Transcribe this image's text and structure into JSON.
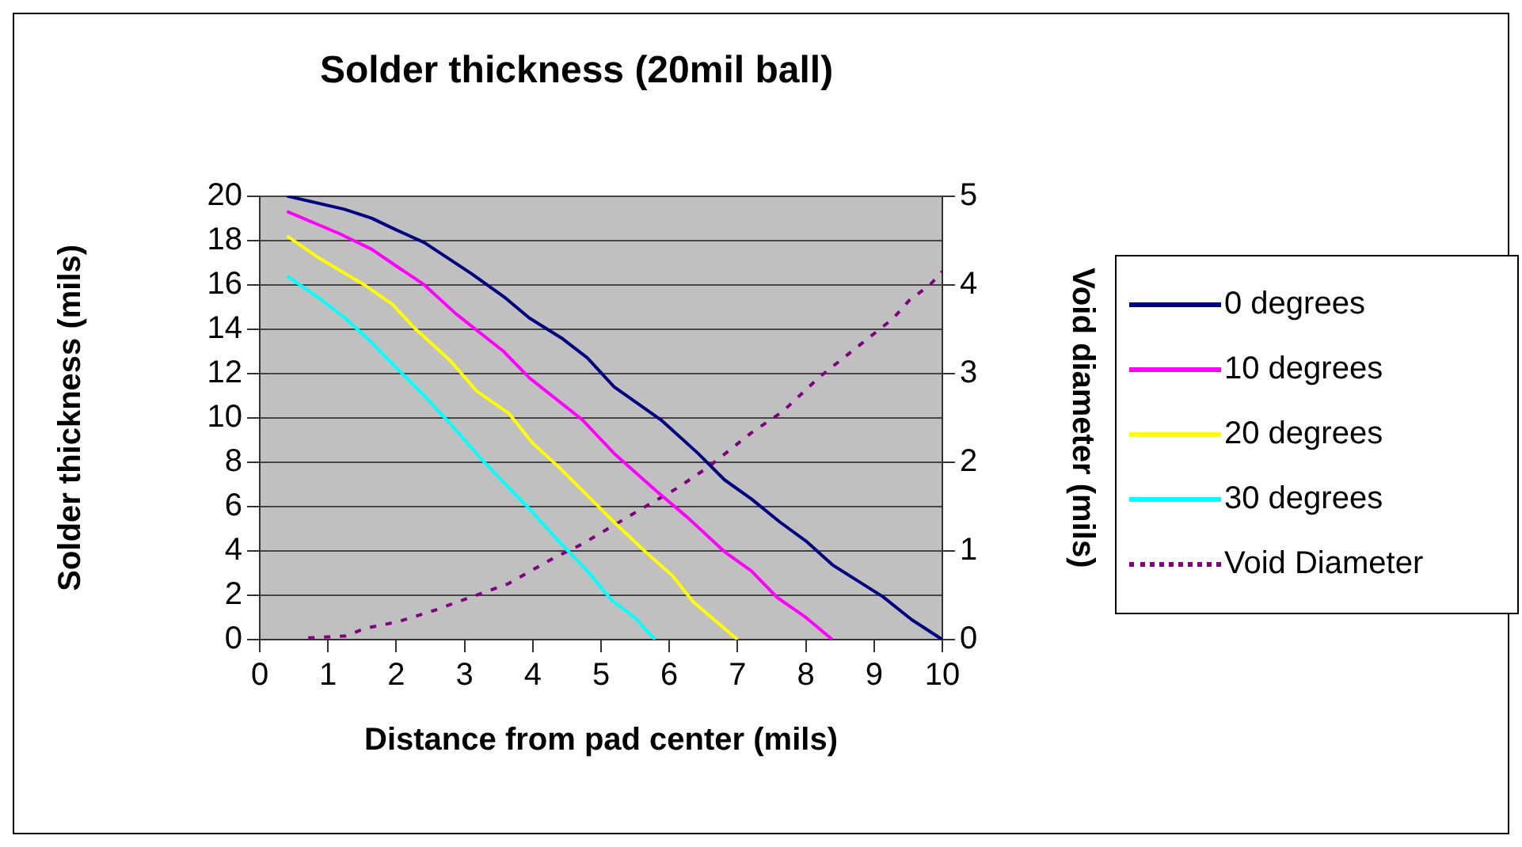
{
  "chart_data": {
    "type": "line",
    "title": "Solder thickness (20mil ball)",
    "xlabel": "Distance from pad center (mils)",
    "ylabel": "Solder thickness (mils)",
    "y2label": "Void diameter (mils)",
    "xlim": [
      0,
      10
    ],
    "xticks": [
      0,
      1,
      2,
      3,
      4,
      5,
      6,
      7,
      8,
      9,
      10
    ],
    "ylim": [
      0,
      20
    ],
    "yticks": [
      0,
      2,
      4,
      6,
      8,
      10,
      12,
      14,
      16,
      18,
      20
    ],
    "y2lim": [
      0,
      5
    ],
    "y2ticks": [
      0,
      1,
      2,
      3,
      4,
      5
    ],
    "grid": "y",
    "legend": "right",
    "marker": "none",
    "series": [
      {
        "name": "0 degrees",
        "color": "#000080",
        "line_style": "solid",
        "x": [
          0.4,
          1.24,
          1.64,
          1.98,
          2.41,
          3.1,
          3.6,
          3.95,
          4.42,
          4.8,
          5.19,
          5.88,
          6.42,
          6.81,
          7.2,
          7.62,
          8.0,
          8.39,
          9.13,
          9.55,
          10
        ],
        "values": [
          20,
          19.4,
          19,
          18.5,
          17.9,
          16.5,
          15.4,
          14.5,
          13.6,
          12.7,
          11.4,
          9.9,
          8.4,
          7.2,
          6.35,
          5.3,
          4.45,
          3.37,
          1.93,
          0.9,
          0
        ]
      },
      {
        "name": "10 degrees",
        "color": "#ff00ff",
        "line_style": "solid",
        "x": [
          0.4,
          1.17,
          1.64,
          2.02,
          2.41,
          2.87,
          3.57,
          3.95,
          4.73,
          5.19,
          5.81,
          6.27,
          6.81,
          7.2,
          7.58,
          8.0,
          8.39
        ],
        "values": [
          19.3,
          18.3,
          17.6,
          16.8,
          16,
          14.7,
          13,
          11.8,
          9.9,
          8.4,
          6.7,
          5.5,
          3.96,
          3.1,
          1.9,
          1,
          0
        ]
      },
      {
        "name": "20 degrees",
        "color": "#ffff00",
        "line_style": "solid",
        "x": [
          0.4,
          0.87,
          1.53,
          1.95,
          2.25,
          2.8,
          3.18,
          3.65,
          4.0,
          4.34,
          4.8,
          5.19,
          5.65,
          6.04,
          6.35,
          7.0
        ],
        "values": [
          18.2,
          17.2,
          16,
          15.1,
          14.1,
          12.55,
          11.2,
          10.2,
          8.85,
          7.9,
          6.5,
          5.3,
          3.96,
          2.9,
          1.7,
          0
        ]
      },
      {
        "name": "30 degrees",
        "color": "#00ffff",
        "line_style": "solid",
        "x": [
          0.4,
          0.87,
          1.25,
          1.64,
          2.02,
          2.41,
          2.8,
          3.26,
          3.57,
          3.95,
          4.42,
          4.8,
          5.15,
          5.5,
          5.79
        ],
        "values": [
          16.4,
          15.4,
          14.5,
          13.4,
          12.2,
          11,
          9.7,
          8.1,
          7.1,
          5.9,
          4.3,
          3.1,
          1.8,
          0.98,
          0
        ]
      },
      {
        "name": "Void Diameter",
        "color": "#800080",
        "line_style": "dotted",
        "axis": "y2",
        "x": [
          0.71,
          1.25,
          1.56,
          2.02,
          2.56,
          3.1,
          3.64,
          4.26,
          4.73,
          5.19,
          5.65,
          6.12,
          6.58,
          7.2,
          7.66,
          8.2,
          8.74,
          9.28,
          9.51,
          9.82,
          10
        ],
        "values": [
          0.02,
          0.04,
          0.13,
          0.2,
          0.33,
          0.48,
          0.63,
          0.9,
          1.08,
          1.29,
          1.5,
          1.71,
          1.95,
          2.33,
          2.57,
          2.96,
          3.29,
          3.62,
          3.82,
          4.0,
          4.15
        ]
      }
    ]
  }
}
